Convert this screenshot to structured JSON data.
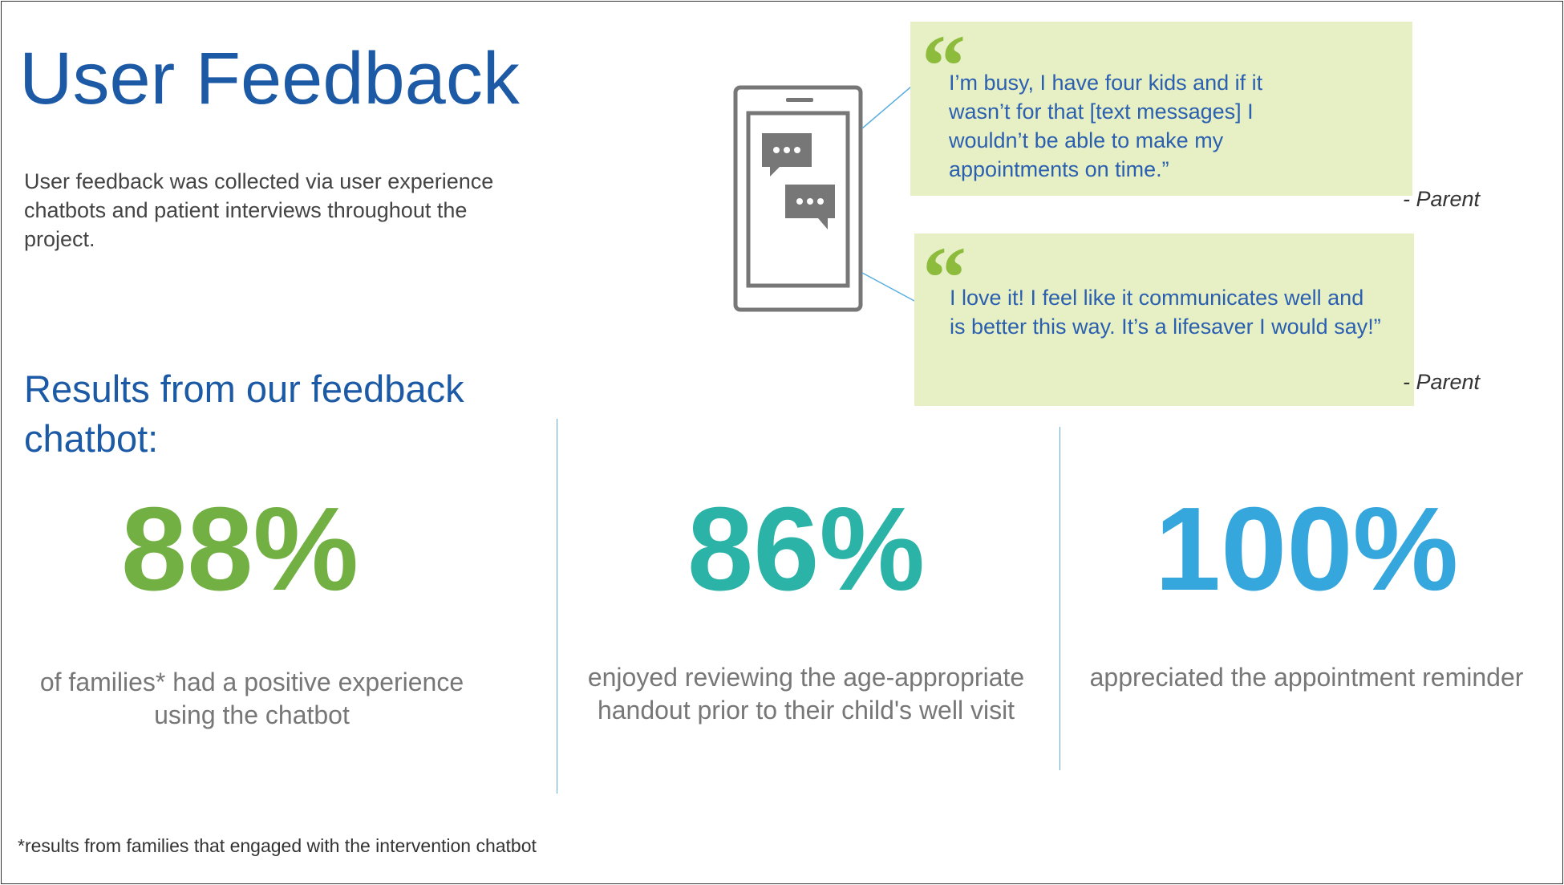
{
  "header": {
    "title": "User Feedback",
    "description": "User feedback was collected via user experience chatbots and patient interviews throughout the project."
  },
  "quotes": [
    {
      "text": "I’m busy, I have four kids and if it wasn’t for that [text messages] I wouldn’t be able to make my appointments on time.”",
      "attribution": "- Parent"
    },
    {
      "text": "I love it! I feel like it communicates well and is better this way. It’s a lifesaver I would say!”",
      "attribution": "- Parent"
    }
  ],
  "results": {
    "heading": "Results from our feedback chatbot:",
    "stats": [
      {
        "value": "88%",
        "description": "of families* had a positive experience using the chatbot"
      },
      {
        "value": "86%",
        "description": "enjoyed reviewing the age-appropriate handout prior to their child's well visit"
      },
      {
        "value": "100%",
        "description": "appreciated the appointment reminder"
      }
    ]
  },
  "footnote": "*results from families that engaged with the intervention chatbot"
}
